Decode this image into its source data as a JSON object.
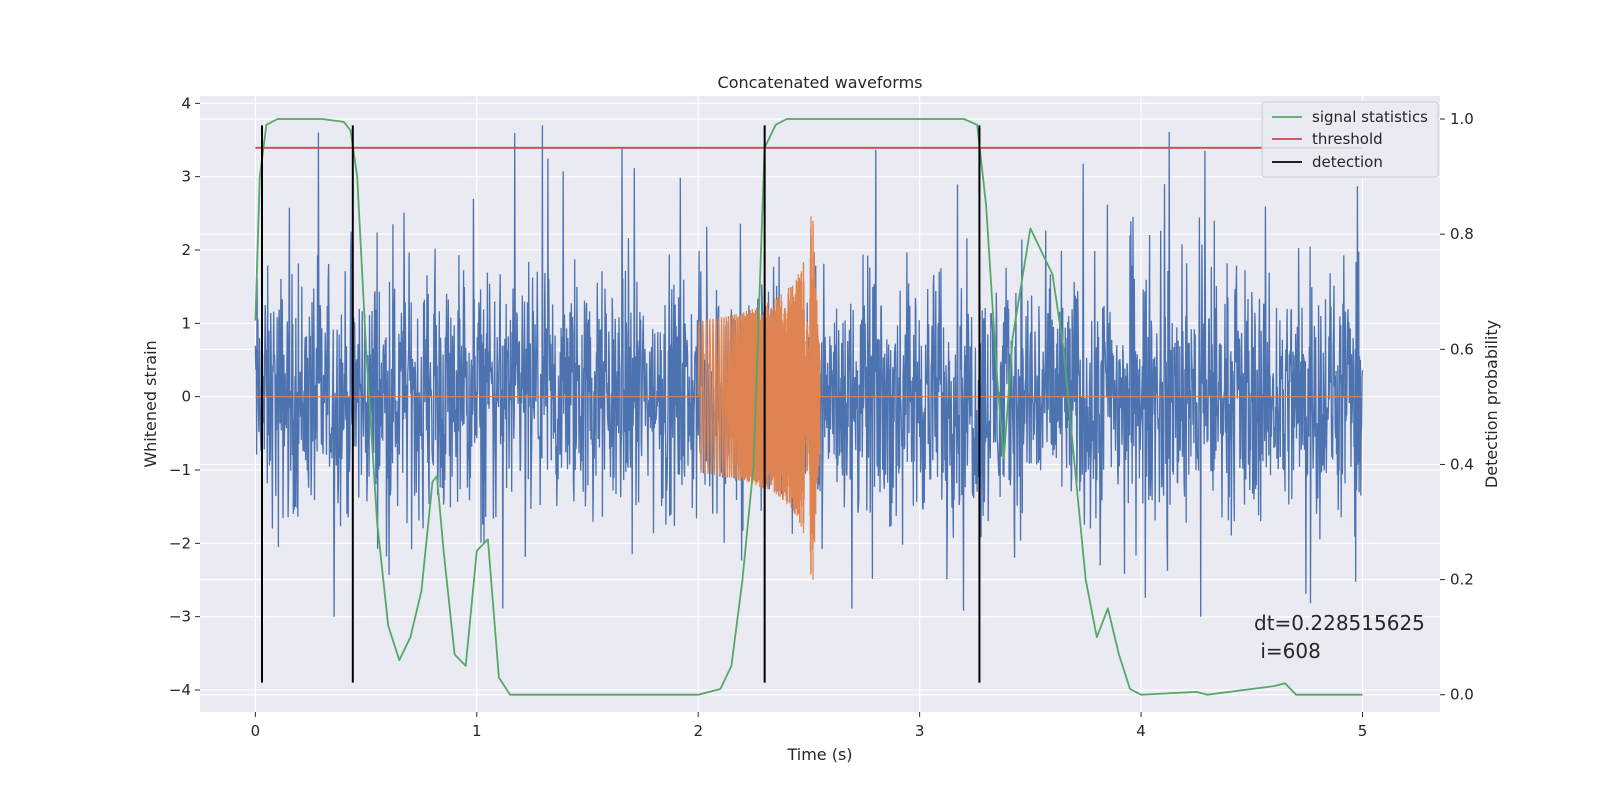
{
  "chart_data": {
    "type": "line",
    "title": "Concatenated waveforms",
    "xlabel": "Time (s)",
    "ylabel": "Whitened strain",
    "y2label": "Detection probability",
    "xlim": [
      -0.25,
      5.35
    ],
    "ylim": [
      -4.3,
      4.1
    ],
    "y2lim": [
      -0.03,
      1.04
    ],
    "x_ticks": [
      0,
      1,
      2,
      3,
      4,
      5
    ],
    "y_ticks": [
      -4,
      -3,
      -2,
      -1,
      0,
      1,
      2,
      3,
      4
    ],
    "y2_ticks": [
      0.0,
      0.2,
      0.4,
      0.6,
      0.8,
      1.0
    ],
    "x_tick_labels": [
      "0",
      "1",
      "2",
      "3",
      "4",
      "5"
    ],
    "y_tick_labels": [
      "−4",
      "−3",
      "−2",
      "−1",
      "0",
      "1",
      "2",
      "3",
      "4"
    ],
    "y2_tick_labels": [
      "0.0",
      "0.2",
      "0.4",
      "0.6",
      "0.8",
      "1.0"
    ],
    "grid": true,
    "legend_position": "top-right",
    "colors": {
      "noise": "#4c72b0",
      "injection": "#dd8452",
      "signal_statistics": "#55a868",
      "threshold": "#c44e52",
      "detection": "#000000",
      "plot_background": "#eaeaf2",
      "grid": "#ffffff"
    },
    "series": [
      {
        "name": "signal statistics",
        "axis": "right",
        "x": [
          0.0,
          0.02,
          0.05,
          0.1,
          0.2,
          0.3,
          0.4,
          0.43,
          0.46,
          0.5,
          0.55,
          0.6,
          0.65,
          0.7,
          0.75,
          0.8,
          0.82,
          0.85,
          0.9,
          0.95,
          1.0,
          1.05,
          1.1,
          1.15,
          1.2,
          1.5,
          1.8,
          2.0,
          2.1,
          2.15,
          2.2,
          2.25,
          2.3,
          2.35,
          2.4,
          2.5,
          3.0,
          3.2,
          3.26,
          3.3,
          3.35,
          3.38,
          3.42,
          3.5,
          3.6,
          3.65,
          3.7,
          3.75,
          3.8,
          3.85,
          3.9,
          3.95,
          4.0,
          4.25,
          4.3,
          4.6,
          4.65,
          4.7,
          5.0
        ],
        "y": [
          0.65,
          0.9,
          0.99,
          1.0,
          1.0,
          1.0,
          0.995,
          0.98,
          0.9,
          0.6,
          0.3,
          0.12,
          0.06,
          0.1,
          0.18,
          0.37,
          0.38,
          0.25,
          0.07,
          0.05,
          0.25,
          0.27,
          0.03,
          0.0,
          0.0,
          0.0,
          0.0,
          0.0,
          0.01,
          0.05,
          0.2,
          0.4,
          0.95,
          0.99,
          1.0,
          1.0,
          1.0,
          1.0,
          0.99,
          0.85,
          0.55,
          0.41,
          0.62,
          0.81,
          0.73,
          0.6,
          0.4,
          0.2,
          0.1,
          0.15,
          0.07,
          0.01,
          0.0,
          0.005,
          0.0,
          0.015,
          0.02,
          0.0,
          0.0
        ]
      },
      {
        "name": "threshold",
        "axis": "right",
        "x": [
          0.0,
          5.0
        ],
        "y": [
          0.95,
          0.95
        ]
      },
      {
        "name": "detection",
        "axis": "left",
        "type": "vlines",
        "x": [
          0.03,
          0.44,
          2.3,
          3.27
        ],
        "y_range": [
          -3.9,
          3.7
        ]
      },
      {
        "axis": "left",
        "type": "noise",
        "x_range": [
          0.0,
          5.0
        ],
        "envelope_typical": [
          -1.4,
          1.3
        ],
        "peak_range": [
          -3.0,
          3.7
        ]
      },
      {
        "axis": "left",
        "type": "chirp",
        "x_range": [
          2.0,
          2.55
        ],
        "amplitude_start": 0.35,
        "amplitude_peak": 2.5,
        "peak_time": 2.52
      }
    ],
    "annotations": [
      {
        "line1": "dt=0.228515625",
        "line2": " i=608"
      }
    ]
  }
}
